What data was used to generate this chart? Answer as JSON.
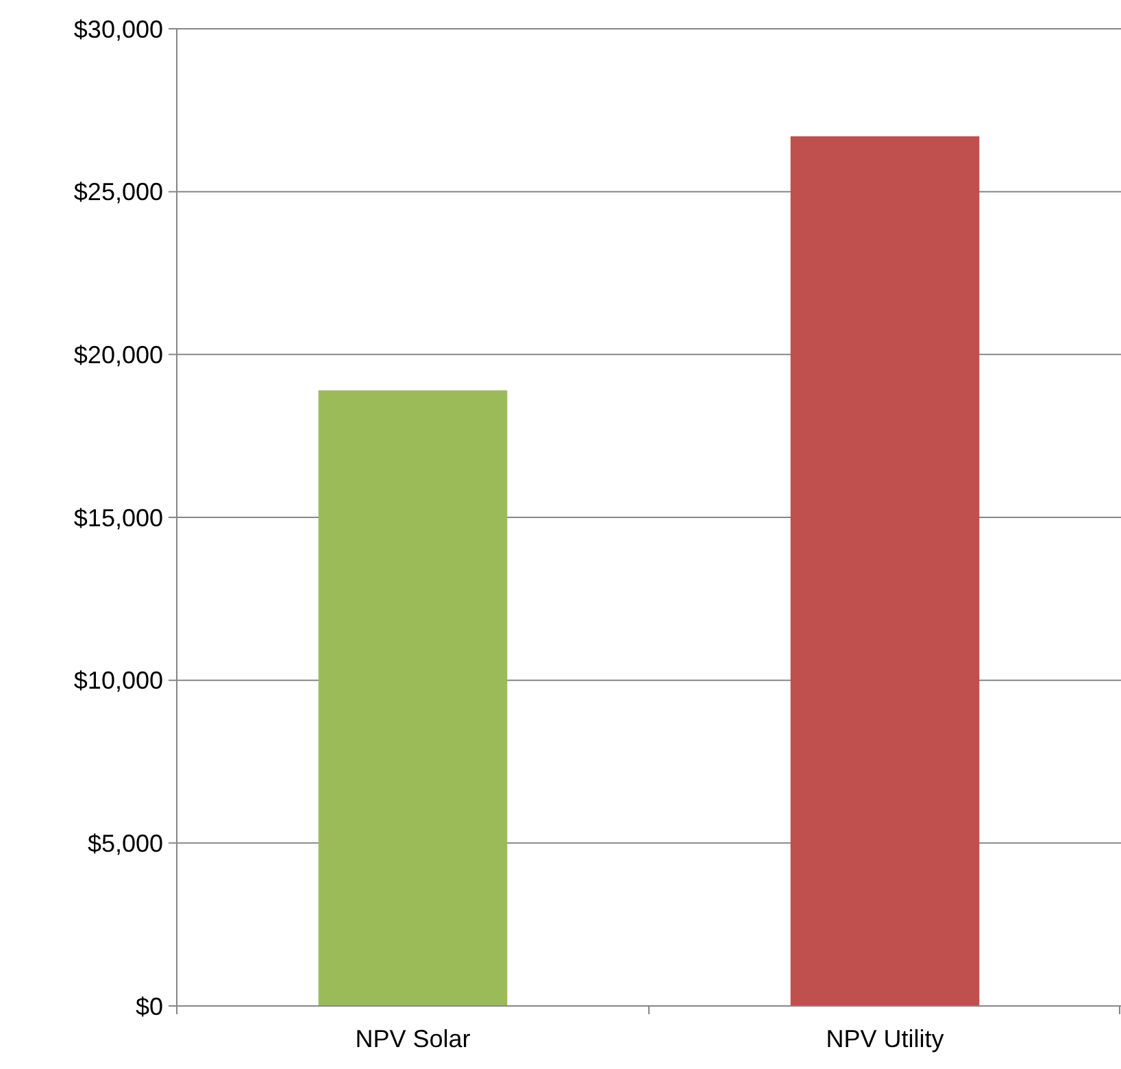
{
  "chart_data": {
    "type": "bar",
    "categories": [
      "NPV Solar",
      "NPV Utility"
    ],
    "values": [
      18900,
      26700
    ],
    "colors": [
      "#9bbb59",
      "#c0504d"
    ],
    "ylim": [
      0,
      30000
    ],
    "yticks": [
      {
        "value": 0,
        "label": "$0"
      },
      {
        "value": 5000,
        "label": "$5,000"
      },
      {
        "value": 10000,
        "label": "$10,000"
      },
      {
        "value": 15000,
        "label": "$15,000"
      },
      {
        "value": 20000,
        "label": "$20,000"
      },
      {
        "value": 25000,
        "label": "$25,000"
      },
      {
        "value": 30000,
        "label": "$30,000"
      }
    ],
    "grid": "y"
  }
}
